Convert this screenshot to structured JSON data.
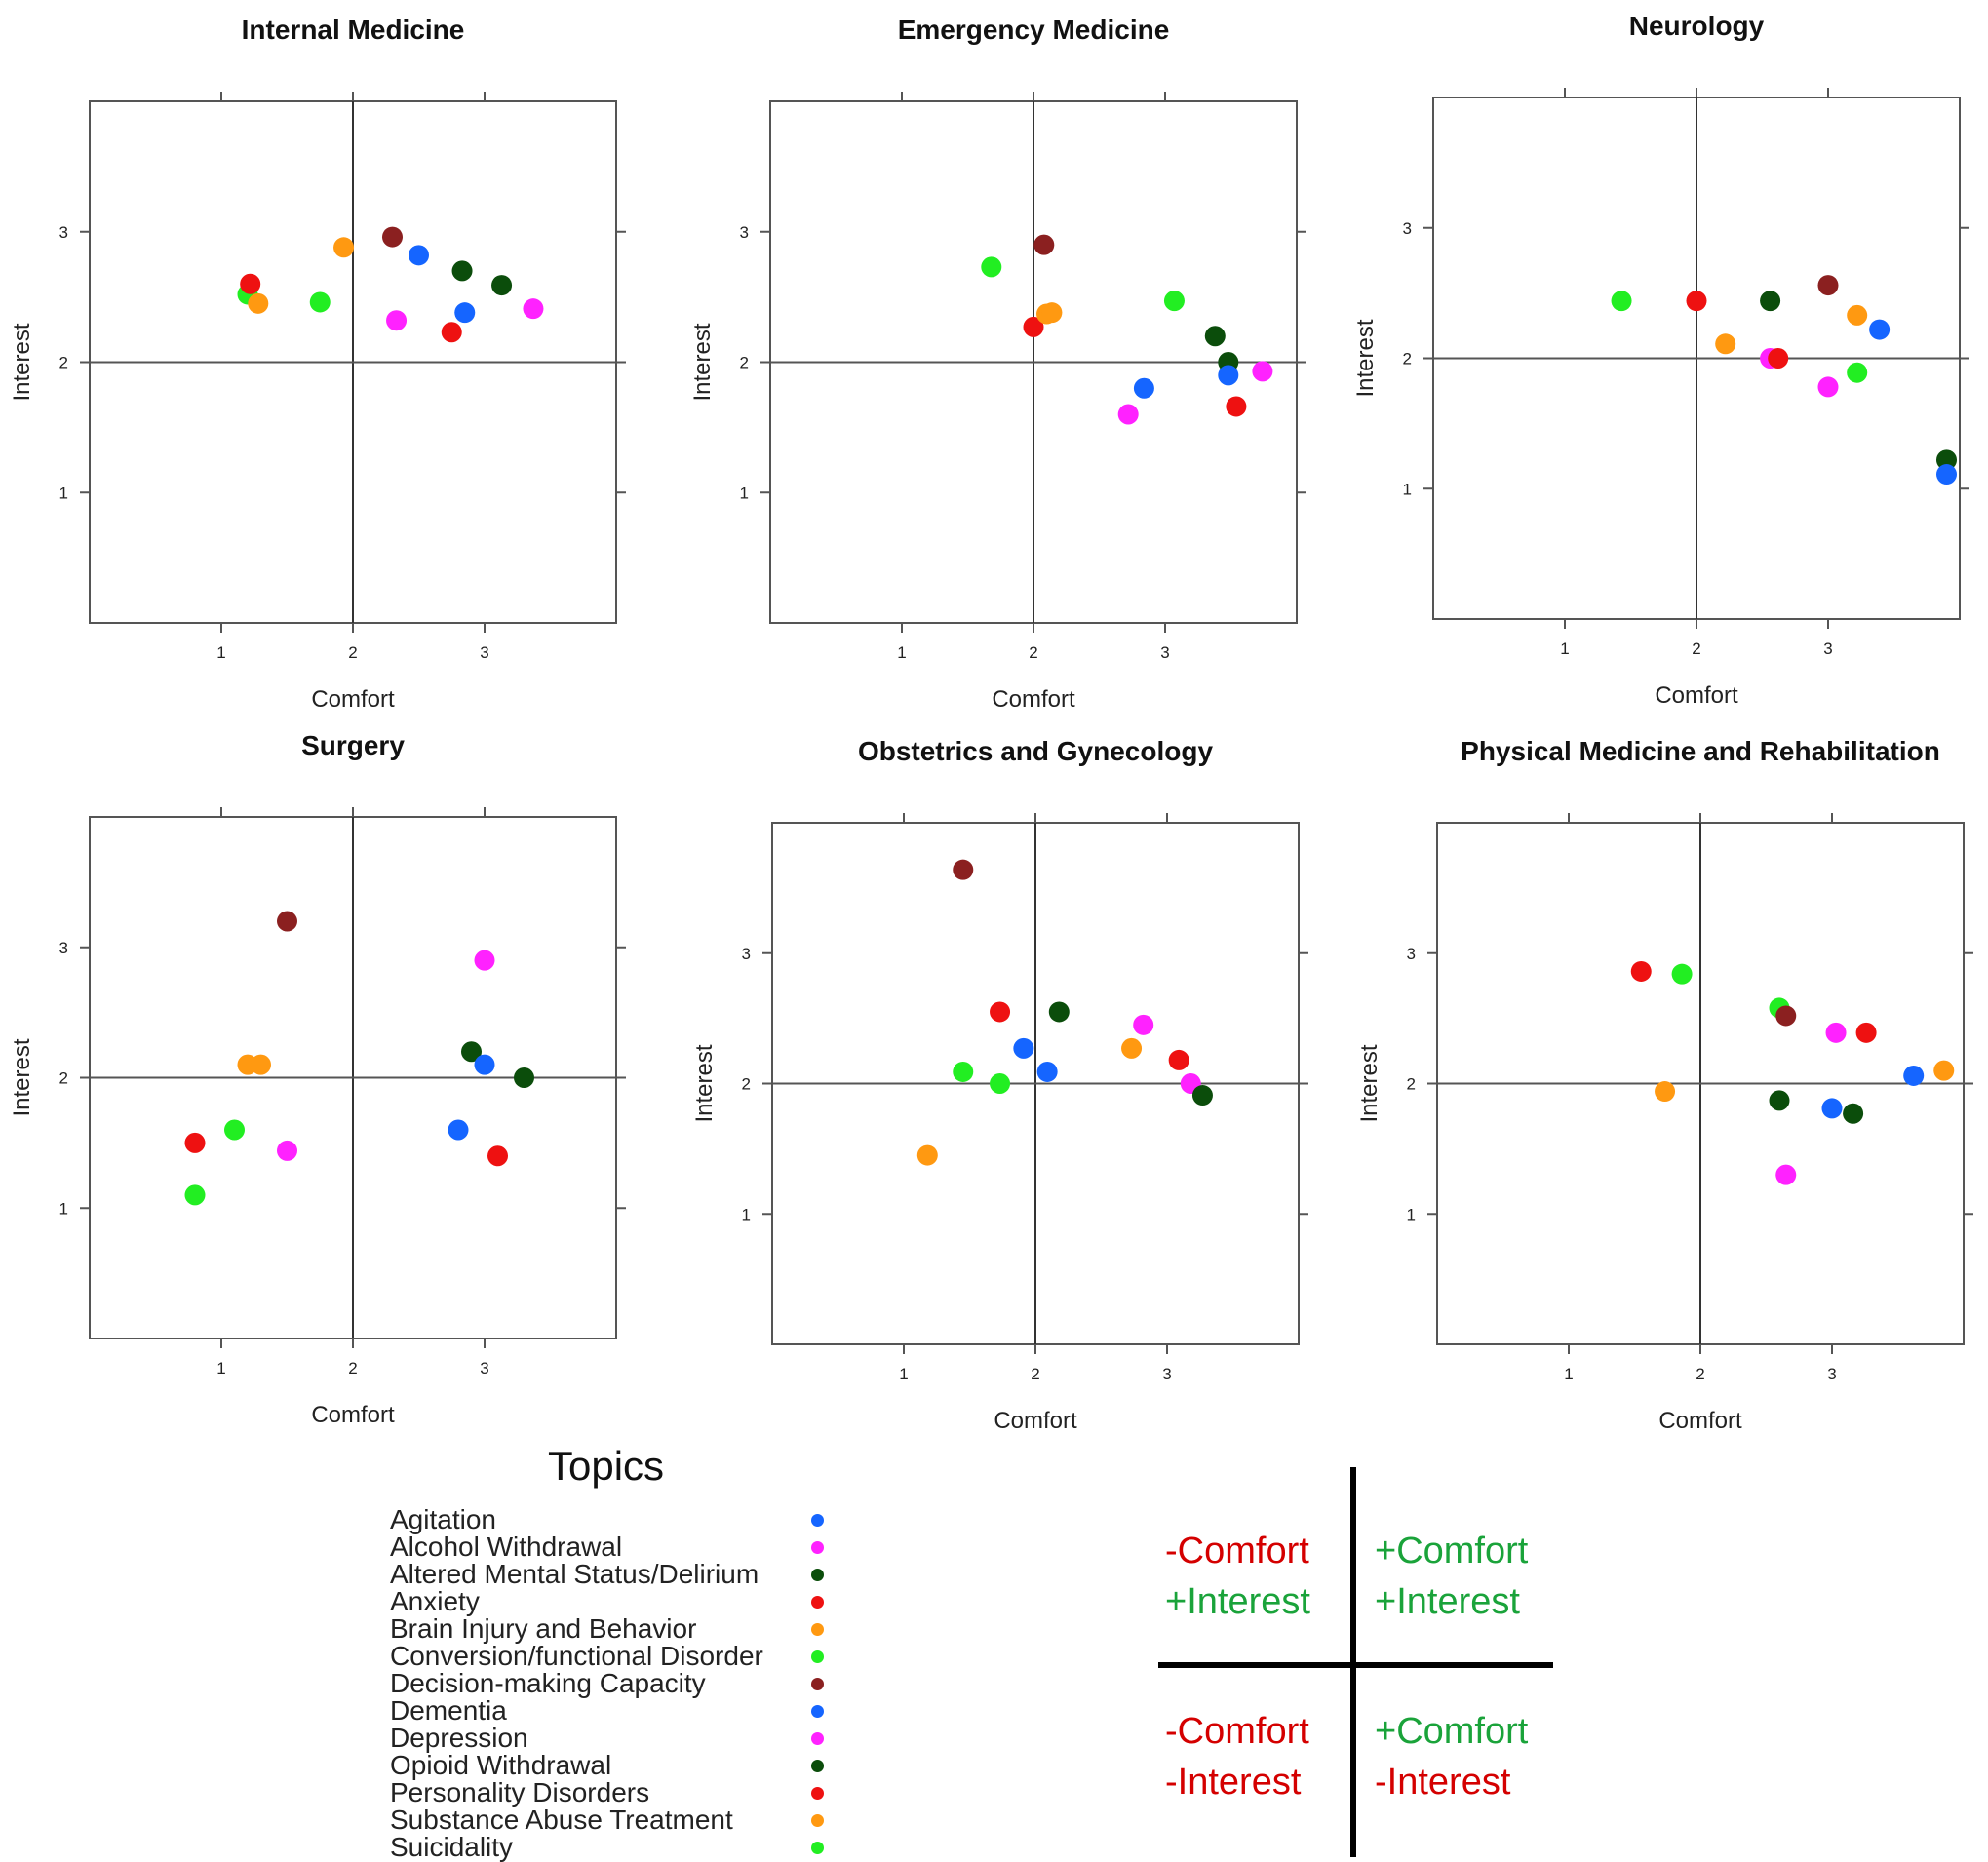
{
  "chart_data": [
    {
      "type": "scatter",
      "title": "Internal Medicine",
      "xlabel": "Comfort",
      "ylabel": "Interest",
      "xlim": [
        0,
        4
      ],
      "ylim": [
        0,
        4
      ],
      "xticks": [
        1,
        2,
        3
      ],
      "yticks": [
        1,
        2,
        3
      ],
      "reference_lines": {
        "x": 2,
        "y": 2
      },
      "points": [
        {
          "topic": "Conversion/functional Disorder",
          "x": 1.2,
          "y": 2.52
        },
        {
          "topic": "Anxiety",
          "x": 1.22,
          "y": 2.6
        },
        {
          "topic": "Brain Injury and Behavior",
          "x": 1.28,
          "y": 2.45
        },
        {
          "topic": "Suicidality",
          "x": 1.75,
          "y": 2.46
        },
        {
          "topic": "Substance Abuse Treatment",
          "x": 1.93,
          "y": 2.88
        },
        {
          "topic": "Decision-making Capacity",
          "x": 2.3,
          "y": 2.96
        },
        {
          "topic": "Alcohol Withdrawal",
          "x": 2.33,
          "y": 2.32
        },
        {
          "topic": "Agitation",
          "x": 2.5,
          "y": 2.82
        },
        {
          "topic": "Personality Disorders",
          "x": 2.75,
          "y": 2.23
        },
        {
          "topic": "Altered Mental Status/Delirium",
          "x": 2.83,
          "y": 2.7
        },
        {
          "topic": "Dementia",
          "x": 2.85,
          "y": 2.38
        },
        {
          "topic": "Opioid Withdrawal",
          "x": 3.13,
          "y": 2.59
        },
        {
          "topic": "Depression",
          "x": 3.37,
          "y": 2.41
        }
      ]
    },
    {
      "type": "scatter",
      "title": "Emergency Medicine",
      "xlabel": "Comfort",
      "ylabel": "Interest",
      "xlim": [
        0,
        4
      ],
      "ylim": [
        0,
        4
      ],
      "xticks": [
        1,
        2,
        3
      ],
      "yticks": [
        1,
        2,
        3
      ],
      "reference_lines": {
        "x": 2,
        "y": 2
      },
      "points": [
        {
          "topic": "Conversion/functional Disorder",
          "x": 1.68,
          "y": 2.73
        },
        {
          "topic": "Anxiety",
          "x": 2.0,
          "y": 2.27
        },
        {
          "topic": "Decision-making Capacity",
          "x": 2.08,
          "y": 2.9
        },
        {
          "topic": "Brain Injury and Behavior",
          "x": 2.1,
          "y": 2.37
        },
        {
          "topic": "Substance Abuse Treatment",
          "x": 2.14,
          "y": 2.38
        },
        {
          "topic": "Alcohol Withdrawal",
          "x": 2.72,
          "y": 1.6
        },
        {
          "topic": "Agitation",
          "x": 2.84,
          "y": 1.8
        },
        {
          "topic": "Suicidality",
          "x": 3.07,
          "y": 2.47
        },
        {
          "topic": "Altered Mental Status/Delirium",
          "x": 3.38,
          "y": 2.2
        },
        {
          "topic": "Opioid Withdrawal",
          "x": 3.48,
          "y": 2.0
        },
        {
          "topic": "Dementia",
          "x": 3.48,
          "y": 1.9
        },
        {
          "topic": "Personality Disorders",
          "x": 3.54,
          "y": 1.66
        },
        {
          "topic": "Depression",
          "x": 3.74,
          "y": 1.93
        }
      ]
    },
    {
      "type": "scatter",
      "title": "Neurology",
      "xlabel": "Comfort",
      "ylabel": "Interest",
      "xlim": [
        0,
        4
      ],
      "ylim": [
        0,
        4
      ],
      "xticks": [
        1,
        2,
        3
      ],
      "yticks": [
        1,
        2,
        3
      ],
      "reference_lines": {
        "x": 2,
        "y": 2
      },
      "points": [
        {
          "topic": "Conversion/functional Disorder",
          "x": 1.43,
          "y": 2.44
        },
        {
          "topic": "Anxiety",
          "x": 2.0,
          "y": 2.44
        },
        {
          "topic": "Brain Injury and Behavior",
          "x": 2.22,
          "y": 2.11
        },
        {
          "topic": "Altered Mental Status/Delirium",
          "x": 2.56,
          "y": 2.44
        },
        {
          "topic": "Alcohol Withdrawal",
          "x": 2.56,
          "y": 2.0
        },
        {
          "topic": "Personality Disorders",
          "x": 2.62,
          "y": 2.0
        },
        {
          "topic": "Depression",
          "x": 3.0,
          "y": 1.78
        },
        {
          "topic": "Decision-making Capacity",
          "x": 3.0,
          "y": 2.56
        },
        {
          "topic": "Substance Abuse Treatment",
          "x": 3.22,
          "y": 2.33
        },
        {
          "topic": "Suicidality",
          "x": 3.22,
          "y": 1.89
        },
        {
          "topic": "Agitation",
          "x": 3.39,
          "y": 2.22
        },
        {
          "topic": "Opioid Withdrawal",
          "x": 3.9,
          "y": 1.22
        },
        {
          "topic": "Dementia",
          "x": 3.9,
          "y": 1.11
        }
      ]
    },
    {
      "type": "scatter",
      "title": "Surgery",
      "xlabel": "Comfort",
      "ylabel": "Interest",
      "xlim": [
        0,
        4
      ],
      "ylim": [
        0,
        4
      ],
      "xticks": [
        1,
        2,
        3
      ],
      "yticks": [
        1,
        2,
        3
      ],
      "reference_lines": {
        "x": 2,
        "y": 2
      },
      "points": [
        {
          "topic": "Anxiety",
          "x": 0.8,
          "y": 1.5
        },
        {
          "topic": "Suicidality",
          "x": 0.8,
          "y": 1.1
        },
        {
          "topic": "Conversion/functional Disorder",
          "x": 1.1,
          "y": 1.6
        },
        {
          "topic": "Brain Injury and Behavior",
          "x": 1.2,
          "y": 2.1
        },
        {
          "topic": "Substance Abuse Treatment",
          "x": 1.3,
          "y": 2.1
        },
        {
          "topic": "Decision-making Capacity",
          "x": 1.5,
          "y": 3.2
        },
        {
          "topic": "Alcohol Withdrawal",
          "x": 1.5,
          "y": 1.44
        },
        {
          "topic": "Dementia",
          "x": 2.8,
          "y": 1.6
        },
        {
          "topic": "Altered Mental Status/Delirium",
          "x": 2.9,
          "y": 2.2
        },
        {
          "topic": "Depression",
          "x": 3.0,
          "y": 2.9
        },
        {
          "topic": "Agitation",
          "x": 3.0,
          "y": 2.1
        },
        {
          "topic": "Personality Disorders",
          "x": 3.1,
          "y": 1.4
        },
        {
          "topic": "Opioid Withdrawal",
          "x": 3.3,
          "y": 2.0
        }
      ]
    },
    {
      "type": "scatter",
      "title": "Obstetrics and Gynecology",
      "xlabel": "Comfort",
      "ylabel": "Interest",
      "xlim": [
        0,
        4
      ],
      "ylim": [
        0,
        4
      ],
      "xticks": [
        1,
        2,
        3
      ],
      "yticks": [
        1,
        2,
        3
      ],
      "reference_lines": {
        "x": 2,
        "y": 2
      },
      "points": [
        {
          "topic": "Brain Injury and Behavior",
          "x": 1.18,
          "y": 1.45
        },
        {
          "topic": "Decision-making Capacity",
          "x": 1.45,
          "y": 3.64
        },
        {
          "topic": "Conversion/functional Disorder",
          "x": 1.45,
          "y": 2.09
        },
        {
          "topic": "Anxiety",
          "x": 1.73,
          "y": 2.55
        },
        {
          "topic": "Suicidality",
          "x": 1.73,
          "y": 2.0
        },
        {
          "topic": "Agitation",
          "x": 1.91,
          "y": 2.27
        },
        {
          "topic": "Dementia",
          "x": 2.09,
          "y": 2.09
        },
        {
          "topic": "Altered Mental Status/Delirium",
          "x": 2.18,
          "y": 2.55
        },
        {
          "topic": "Substance Abuse Treatment",
          "x": 2.73,
          "y": 2.27
        },
        {
          "topic": "Alcohol Withdrawal",
          "x": 2.82,
          "y": 2.45
        },
        {
          "topic": "Personality Disorders",
          "x": 3.09,
          "y": 2.18
        },
        {
          "topic": "Depression",
          "x": 3.18,
          "y": 2.0
        },
        {
          "topic": "Opioid Withdrawal",
          "x": 3.27,
          "y": 1.91
        }
      ]
    },
    {
      "type": "scatter",
      "title": "Physical Medicine and Rehabilitation",
      "xlabel": "Comfort",
      "ylabel": "Interest",
      "xlim": [
        0,
        4
      ],
      "ylim": [
        0,
        4
      ],
      "xticks": [
        1,
        2,
        3
      ],
      "yticks": [
        1,
        2,
        3
      ],
      "reference_lines": {
        "x": 2,
        "y": 2
      },
      "points": [
        {
          "topic": "Anxiety",
          "x": 1.55,
          "y": 2.86
        },
        {
          "topic": "Brain Injury and Behavior",
          "x": 1.73,
          "y": 1.94
        },
        {
          "topic": "Conversion/functional Disorder",
          "x": 1.86,
          "y": 2.84
        },
        {
          "topic": "Suicidality",
          "x": 2.6,
          "y": 2.58
        },
        {
          "topic": "Altered Mental Status/Delirium",
          "x": 2.6,
          "y": 1.87
        },
        {
          "topic": "Decision-making Capacity",
          "x": 2.65,
          "y": 2.52
        },
        {
          "topic": "Alcohol Withdrawal",
          "x": 2.65,
          "y": 1.3
        },
        {
          "topic": "Agitation",
          "x": 3.0,
          "y": 1.81
        },
        {
          "topic": "Depression",
          "x": 3.03,
          "y": 2.39
        },
        {
          "topic": "Opioid Withdrawal",
          "x": 3.16,
          "y": 1.77
        },
        {
          "topic": "Personality Disorders",
          "x": 3.26,
          "y": 2.39
        },
        {
          "topic": "Dementia",
          "x": 3.62,
          "y": 2.06
        },
        {
          "topic": "Substance Abuse Treatment",
          "x": 3.85,
          "y": 2.1
        }
      ]
    }
  ],
  "legend": {
    "title": "Topics",
    "items": [
      {
        "label": "Agitation",
        "color": "#1565ff"
      },
      {
        "label": "Alcohol Withdrawal",
        "color": "#ff22ff"
      },
      {
        "label": "Altered Mental Status/Delirium",
        "color": "#0b4d0b"
      },
      {
        "label": "Anxiety",
        "color": "#ee1111"
      },
      {
        "label": "Brain Injury and Behavior",
        "color": "#ff9911"
      },
      {
        "label": "Conversion/functional Disorder",
        "color": "#22ee22"
      },
      {
        "label": "Decision-making Capacity",
        "color": "#8b2020"
      },
      {
        "label": "Dementia",
        "color": "#1565ff"
      },
      {
        "label": "Depression",
        "color": "#ff22ff"
      },
      {
        "label": "Opioid Withdrawal",
        "color": "#0b4d0b"
      },
      {
        "label": "Personality Disorders",
        "color": "#ee1111"
      },
      {
        "label": "Substance Abuse Treatment",
        "color": "#ff9911"
      },
      {
        "label": "Suicidality",
        "color": "#22ee22"
      }
    ]
  },
  "quadrant_key": {
    "top_left": [
      "-Comfort",
      "+Interest"
    ],
    "top_right": [
      "+Comfort",
      "+Interest"
    ],
    "bottom_left": [
      "-Comfort",
      "-Interest"
    ],
    "bottom_right": [
      "+Comfort",
      "-Interest"
    ],
    "negative_color": "#d40000",
    "positive_color": "#1aa33a"
  }
}
